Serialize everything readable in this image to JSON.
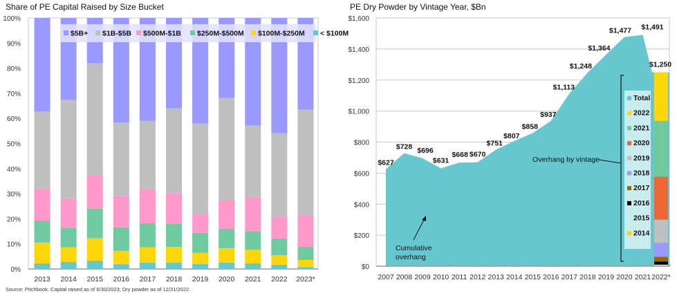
{
  "source_note": "Source: Pitchbook. Capital raised as of 6/30/2023; Dry powder as of 12/31/2022.",
  "chart_data": [
    {
      "type": "bar",
      "stacked": true,
      "title": "Share of PE Capital Raised by Size Bucket",
      "xlabel": "",
      "ylabel": "",
      "ylim": [
        0,
        100
      ],
      "y_ticks": [
        "0%",
        "10%",
        "20%",
        "30%",
        "40%",
        "50%",
        "60%",
        "70%",
        "80%",
        "90%",
        "100%"
      ],
      "grid": false,
      "legend_position": "top-center",
      "categories": [
        "2013",
        "2014",
        "2015",
        "2016",
        "2017",
        "2018",
        "2019",
        "2020",
        "2021",
        "2022",
        "2023*"
      ],
      "series": [
        {
          "name": "< $100M",
          "color": "#66C7CF",
          "values": [
            2.2,
            2.8,
            3.3,
            1.9,
            2.5,
            2.5,
            2.0,
            2.5,
            2.2,
            1.7,
            0.8
          ]
        },
        {
          "name": "$100M-$250M",
          "color": "#FFD60A",
          "values": [
            8.3,
            5.8,
            8.9,
            5.3,
            6.1,
            6.3,
            4.4,
            5.8,
            5.5,
            3.8,
            2.8
          ]
        },
        {
          "name": "$250M-$500M",
          "color": "#6FCB9F",
          "values": [
            8.8,
            7.7,
            11.8,
            9.4,
            9.6,
            9.2,
            8.0,
            7.7,
            7.3,
            6.7,
            5.2
          ]
        },
        {
          "name": "$500M-$1B",
          "color": "#FF99CC",
          "values": [
            12.7,
            11.9,
            13.3,
            12.4,
            13.8,
            12.1,
            7.6,
            11.6,
            13.5,
            8.5,
            12.7
          ]
        },
        {
          "name": "$1B-$5B",
          "color": "#BFBFBF",
          "values": [
            30.7,
            39.2,
            44.7,
            29.3,
            27.0,
            33.9,
            36.0,
            40.6,
            28.7,
            33.4,
            42.0
          ]
        },
        {
          "name": "$5B+",
          "color": "#9999FF",
          "values": [
            37.3,
            32.6,
            18.0,
            41.7,
            41.0,
            36.0,
            42.0,
            31.8,
            42.8,
            45.9,
            36.5
          ]
        }
      ],
      "legend_order": [
        "$5B+",
        "$1B-$5B",
        "$500M-$1B",
        "$250M-$500M",
        "$100M-$250M",
        "< $100M"
      ]
    },
    {
      "type": "area",
      "title": "PE Dry Powder by Vintage Year, $Bn",
      "xlabel": "",
      "ylabel": "",
      "ylim": [
        0,
        1600
      ],
      "y_ticks": [
        "$0",
        "$200",
        "$400",
        "$600",
        "$800",
        "$1,000",
        "$1,200",
        "$1,400",
        "$1,600"
      ],
      "grid": true,
      "categories": [
        "2007",
        "2008",
        "2009",
        "2010",
        "2011",
        "2012",
        "2013",
        "2014",
        "2015",
        "2016",
        "2017",
        "2018",
        "2019",
        "2020",
        "2021",
        "2022*"
      ],
      "series": [
        {
          "name": "Total",
          "color": "#66C7CF",
          "values": [
            627,
            728,
            696,
            631,
            668,
            670,
            751,
            807,
            858,
            937,
            1113,
            1248,
            1364,
            1477,
            1491,
            1250
          ],
          "labels": [
            "$627",
            "$728",
            "$696",
            "$631",
            "$668",
            "$670",
            "$751",
            "$807",
            "$858",
            "$937",
            "$1,113",
            "$1,248",
            "$1,364",
            "$1,477",
            "$1,491",
            "$1,250"
          ]
        }
      ],
      "stacked_bar_2022": {
        "category": "2022*",
        "segments": [
          {
            "name": "2014",
            "color": "#FFD60A",
            "value": 1
          },
          {
            "name": "2015",
            "color": "#C9ECEF",
            "value": 9
          },
          {
            "name": "2016",
            "color": "#000000",
            "value": 20
          },
          {
            "name": "2017",
            "color": "#996600",
            "value": 30
          },
          {
            "name": "2018",
            "color": "#9999FF",
            "value": 90
          },
          {
            "name": "2019",
            "color": "#BFBFBF",
            "value": 150
          },
          {
            "name": "2020",
            "color": "#EE6633",
            "value": 277
          },
          {
            "name": "2021",
            "color": "#6FCB9F",
            "value": 360
          },
          {
            "name": "2022",
            "color": "#FFD60A",
            "value": 313
          }
        ]
      },
      "legend_position": "right-inside",
      "legend": [
        {
          "name": "Total",
          "color": "#66C7CF"
        },
        {
          "name": "2022",
          "color": "#FFD60A"
        },
        {
          "name": "2021",
          "color": "#6FCB9F"
        },
        {
          "name": "2020",
          "color": "#EE6633"
        },
        {
          "name": "2019",
          "color": "#BFBFBF"
        },
        {
          "name": "2018",
          "color": "#9999FF"
        },
        {
          "name": "2017",
          "color": "#996600"
        },
        {
          "name": "2016",
          "color": "#000000"
        },
        {
          "name": "2015",
          "color": "#C9ECEF"
        },
        {
          "name": "2014",
          "color": "#FFD60A"
        }
      ],
      "annotations": {
        "cumulative": "Cumulative overhang",
        "cumulative_line1": "Cumulative",
        "cumulative_line2": "overhang",
        "by_vintage": "Overhang by vintage"
      }
    }
  ]
}
